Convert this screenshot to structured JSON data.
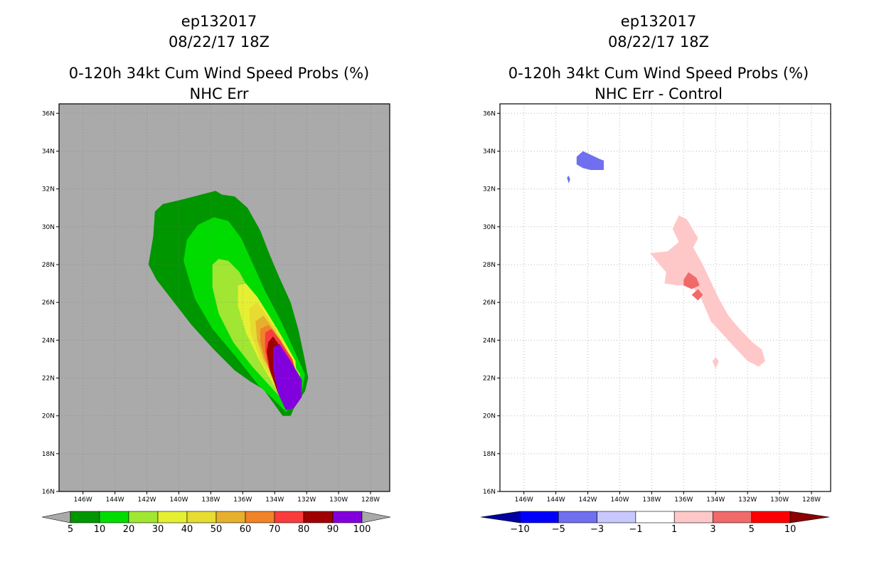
{
  "left_panel": {
    "title_line1": "ep132017",
    "title_line2": "08/22/17 18Z",
    "title_line3": "0-120h 34kt Cum Wind Speed Probs (%)",
    "title_line4": "NHC Err"
  },
  "right_panel": {
    "title_line1": "ep132017",
    "title_line2": "08/22/17 18Z",
    "title_line3": "0-120h 34kt Cum Wind Speed Probs (%)",
    "title_line4": "NHC Err - Control"
  },
  "colors": {
    "missing_background": "#aaaaaa",
    "grid": "#bbbbbb",
    "prob_fill": [
      "#009600",
      "#00dc00",
      "#a0e632",
      "#e6f032",
      "#e6dc32",
      "#e6af2d",
      "#f08228",
      "#fa3c3c",
      "#a00000",
      "#8200dc"
    ],
    "diff_fill": [
      "#0000a0",
      "#0000ff",
      "#6f6fef",
      "#c8c8ff",
      "#ffffff",
      "#ffc8c8",
      "#f06a6a",
      "#ff0000",
      "#8b0000"
    ]
  },
  "chart_data": [
    {
      "type": "contour",
      "title": "0-120h 34kt Cum Wind Speed Probs (%)",
      "subtitle": "NHC Err",
      "x_ticks": [
        "146W",
        "144W",
        "142W",
        "140W",
        "138W",
        "136W",
        "134W",
        "132W",
        "130W",
        "128W"
      ],
      "y_ticks": [
        "16N",
        "18N",
        "20N",
        "22N",
        "24N",
        "26N",
        "28N",
        "30N",
        "32N",
        "34N",
        "36N"
      ],
      "xlim": [
        -147.5,
        -126.8
      ],
      "ylim": [
        16,
        36.5
      ],
      "colorbar_levels": [
        "5",
        "10",
        "20",
        "30",
        "40",
        "50",
        "60",
        "70",
        "80",
        "90",
        "100"
      ],
      "contours": [
        {
          "level": 5,
          "polygon": [
            [
              -141.9,
              28.0
            ],
            [
              -141.6,
              29.5
            ],
            [
              -141.5,
              30.8
            ],
            [
              -141.0,
              31.2
            ],
            [
              -139.5,
              31.5
            ],
            [
              -137.7,
              31.9
            ],
            [
              -137.3,
              31.7
            ],
            [
              -136.5,
              31.6
            ],
            [
              -135.7,
              31.0
            ],
            [
              -134.9,
              29.8
            ],
            [
              -134.3,
              28.5
            ],
            [
              -133.7,
              27.3
            ],
            [
              -133.0,
              26.0
            ],
            [
              -132.5,
              24.5
            ],
            [
              -132.1,
              22.9
            ],
            [
              -131.9,
              22.0
            ],
            [
              -132.1,
              21.3
            ],
            [
              -132.7,
              20.6
            ],
            [
              -133.0,
              20.0
            ],
            [
              -133.5,
              20.0
            ],
            [
              -134.7,
              21.4
            ],
            [
              -135.5,
              21.8
            ],
            [
              -136.5,
              22.4
            ],
            [
              -137.8,
              23.5
            ],
            [
              -139.2,
              24.8
            ],
            [
              -140.3,
              26.0
            ],
            [
              -141.4,
              27.2
            ]
          ]
        },
        {
          "level": 10,
          "polygon": [
            [
              -139.7,
              28.2
            ],
            [
              -139.5,
              29.3
            ],
            [
              -138.8,
              30.1
            ],
            [
              -137.8,
              30.5
            ],
            [
              -136.9,
              30.3
            ],
            [
              -136.1,
              29.4
            ],
            [
              -135.4,
              28.1
            ],
            [
              -134.6,
              26.6
            ],
            [
              -133.6,
              25.0
            ],
            [
              -132.8,
              23.5
            ],
            [
              -132.1,
              22.2
            ],
            [
              -132.3,
              21.2
            ],
            [
              -132.8,
              20.6
            ],
            [
              -133.3,
              20.2
            ],
            [
              -134.1,
              20.9
            ],
            [
              -135.0,
              21.6
            ],
            [
              -136.5,
              23.2
            ],
            [
              -137.9,
              24.6
            ],
            [
              -139.0,
              26.2
            ]
          ]
        },
        {
          "level": 20,
          "polygon": [
            [
              -137.9,
              28.0
            ],
            [
              -137.5,
              28.3
            ],
            [
              -136.9,
              28.2
            ],
            [
              -136.2,
              27.6
            ],
            [
              -135.5,
              26.5
            ],
            [
              -134.5,
              25.2
            ],
            [
              -133.5,
              23.6
            ],
            [
              -132.4,
              22.2
            ],
            [
              -132.6,
              21.0
            ],
            [
              -133.1,
              20.5
            ],
            [
              -134.0,
              21.3
            ],
            [
              -135.4,
              22.6
            ],
            [
              -136.6,
              23.9
            ],
            [
              -137.5,
              25.4
            ],
            [
              -137.9,
              26.8
            ]
          ]
        },
        {
          "level": 30,
          "polygon": [
            [
              -136.3,
              26.9
            ],
            [
              -135.8,
              27.0
            ],
            [
              -135.1,
              26.3
            ],
            [
              -134.5,
              25.5
            ],
            [
              -133.7,
              24.4
            ],
            [
              -132.7,
              22.9
            ],
            [
              -132.6,
              21.2
            ],
            [
              -133.2,
              20.6
            ],
            [
              -133.9,
              21.4
            ],
            [
              -135.0,
              23.0
            ],
            [
              -135.8,
              24.4
            ],
            [
              -136.3,
              25.8
            ]
          ]
        },
        {
          "level": 40,
          "polygon": [
            [
              -135.6,
              25.7
            ],
            [
              -135.1,
              26.0
            ],
            [
              -134.4,
              25.2
            ],
            [
              -133.6,
              24.1
            ],
            [
              -132.8,
              22.8
            ],
            [
              -132.7,
              21.3
            ],
            [
              -133.2,
              20.8
            ],
            [
              -134.0,
              21.7
            ],
            [
              -134.9,
              23.0
            ],
            [
              -135.5,
              24.4
            ]
          ]
        },
        {
          "level": 50,
          "polygon": [
            [
              -135.2,
              25.0
            ],
            [
              -134.7,
              25.3
            ],
            [
              -134.0,
              24.5
            ],
            [
              -133.3,
              23.4
            ],
            [
              -132.8,
              22.5
            ],
            [
              -132.7,
              21.3
            ],
            [
              -133.2,
              20.9
            ],
            [
              -133.9,
              21.8
            ],
            [
              -134.7,
              23.0
            ],
            [
              -135.1,
              24.0
            ]
          ]
        },
        {
          "level": 60,
          "polygon": [
            [
              -134.9,
              24.6
            ],
            [
              -134.4,
              24.8
            ],
            [
              -133.7,
              24.1
            ],
            [
              -133.0,
              23.1
            ],
            [
              -132.7,
              22.2
            ],
            [
              -132.8,
              21.2
            ],
            [
              -133.3,
              20.8
            ],
            [
              -134.0,
              21.9
            ],
            [
              -134.6,
              23.0
            ],
            [
              -134.9,
              23.9
            ]
          ]
        },
        {
          "level": 70,
          "polygon": [
            [
              -134.6,
              24.4
            ],
            [
              -134.2,
              24.6
            ],
            [
              -133.6,
              23.9
            ],
            [
              -132.9,
              23.0
            ],
            [
              -132.6,
              22.1
            ],
            [
              -132.7,
              21.1
            ],
            [
              -133.2,
              20.6
            ],
            [
              -133.9,
              21.5
            ],
            [
              -134.4,
              22.6
            ],
            [
              -134.6,
              23.5
            ]
          ]
        },
        {
          "level": 80,
          "polygon": [
            [
              -134.4,
              23.9
            ],
            [
              -134.1,
              24.2
            ],
            [
              -133.6,
              23.6
            ],
            [
              -133.0,
              22.8
            ],
            [
              -132.5,
              22.0
            ],
            [
              -132.6,
              21.0
            ],
            [
              -133.1,
              20.5
            ],
            [
              -133.8,
              21.2
            ],
            [
              -134.3,
              22.4
            ],
            [
              -134.5,
              23.4
            ]
          ]
        },
        {
          "level": 90,
          "polygon": [
            [
              -134.1,
              23.6
            ],
            [
              -133.7,
              23.8
            ],
            [
              -133.0,
              22.9
            ],
            [
              -132.3,
              21.9
            ],
            [
              -132.3,
              21.0
            ],
            [
              -132.8,
              20.4
            ],
            [
              -133.3,
              20.3
            ],
            [
              -133.8,
              21.2
            ],
            [
              -134.1,
              22.6
            ]
          ]
        }
      ]
    },
    {
      "type": "contour",
      "title": "0-120h 34kt Cum Wind Speed Probs (%)",
      "subtitle": "NHC Err - Control",
      "x_ticks": [
        "146W",
        "144W",
        "142W",
        "140W",
        "138W",
        "136W",
        "134W",
        "132W",
        "130W",
        "128W"
      ],
      "y_ticks": [
        "16N",
        "18N",
        "20N",
        "22N",
        "24N",
        "26N",
        "28N",
        "30N",
        "32N",
        "34N",
        "36N"
      ],
      "xlim": [
        -147.5,
        -126.8
      ],
      "ylim": [
        16,
        36.5
      ],
      "grid": true,
      "colorbar_levels": [
        "-10",
        "-5",
        "-3",
        "-1",
        "1",
        "3",
        "5",
        "10"
      ],
      "contours": [
        {
          "level": -3,
          "polygon": [
            [
              -142.7,
              33.7
            ],
            [
              -142.3,
              34.0
            ],
            [
              -141.8,
              33.8
            ],
            [
              -141.3,
              33.6
            ],
            [
              -141.0,
              33.5
            ],
            [
              -141.0,
              33.0
            ],
            [
              -141.8,
              33.0
            ],
            [
              -142.3,
              33.1
            ],
            [
              -142.7,
              33.3
            ]
          ]
        },
        {
          "level": -3,
          "polygon": [
            [
              -143.3,
              32.6
            ],
            [
              -143.2,
              32.7
            ],
            [
              -143.1,
              32.5
            ],
            [
              -143.2,
              32.3
            ]
          ]
        },
        {
          "level": 1,
          "polygon": [
            [
              -137.0,
              28.7
            ],
            [
              -136.3,
              29.2
            ],
            [
              -136.7,
              29.9
            ],
            [
              -136.3,
              30.6
            ],
            [
              -135.8,
              30.4
            ],
            [
              -135.1,
              29.4
            ],
            [
              -135.4,
              28.9
            ],
            [
              -134.8,
              28.0
            ],
            [
              -134.3,
              27.1
            ],
            [
              -133.8,
              26.2
            ],
            [
              -133.2,
              25.3
            ],
            [
              -132.5,
              24.6
            ],
            [
              -131.7,
              23.9
            ],
            [
              -131.1,
              23.5
            ],
            [
              -130.9,
              22.9
            ],
            [
              -131.3,
              22.6
            ],
            [
              -132.0,
              22.9
            ],
            [
              -133.0,
              23.8
            ],
            [
              -134.3,
              25.0
            ],
            [
              -134.9,
              26.2
            ],
            [
              -135.5,
              26.9
            ],
            [
              -136.3,
              26.9
            ],
            [
              -137.2,
              27.0
            ],
            [
              -137.1,
              27.6
            ],
            [
              -137.7,
              28.2
            ],
            [
              -138.1,
              28.6
            ]
          ]
        },
        {
          "level": 1,
          "polygon": [
            [
              -134.2,
              22.9
            ],
            [
              -134.0,
              23.1
            ],
            [
              -133.8,
              22.9
            ],
            [
              -134.0,
              22.5
            ]
          ]
        },
        {
          "level": 3,
          "polygon": [
            [
              -135.7,
              27.6
            ],
            [
              -135.2,
              27.3
            ],
            [
              -135.0,
              26.9
            ],
            [
              -135.5,
              26.7
            ],
            [
              -136.0,
              26.9
            ],
            [
              -136.0,
              27.2
            ]
          ]
        },
        {
          "level": 3,
          "polygon": [
            [
              -135.1,
              26.7
            ],
            [
              -134.8,
              26.4
            ],
            [
              -135.1,
              26.1
            ],
            [
              -135.5,
              26.4
            ]
          ]
        }
      ]
    }
  ]
}
